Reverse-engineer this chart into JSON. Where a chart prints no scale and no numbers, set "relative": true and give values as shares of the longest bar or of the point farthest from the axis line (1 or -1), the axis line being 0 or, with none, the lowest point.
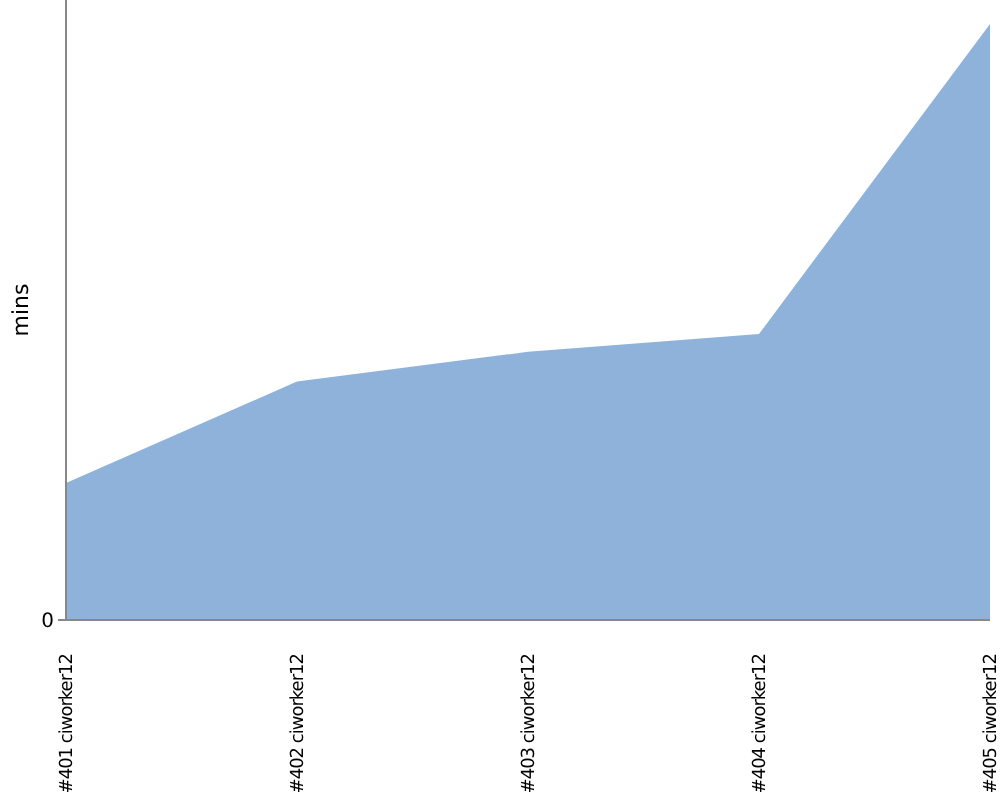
{
  "chart_data": {
    "type": "area",
    "relative": true,
    "ylabel": "mins",
    "categories": [
      "#401 ciworker12",
      "#402 ciworker12",
      "#403 ciworker12",
      "#404 ciworker12",
      "#405 ciworker12"
    ],
    "series": [
      {
        "color": "#8fb2db",
        "values": [
          0.23,
          0.4,
          0.45,
          0.48,
          1
        ]
      }
    ],
    "annotations": [
      "0"
    ]
  }
}
